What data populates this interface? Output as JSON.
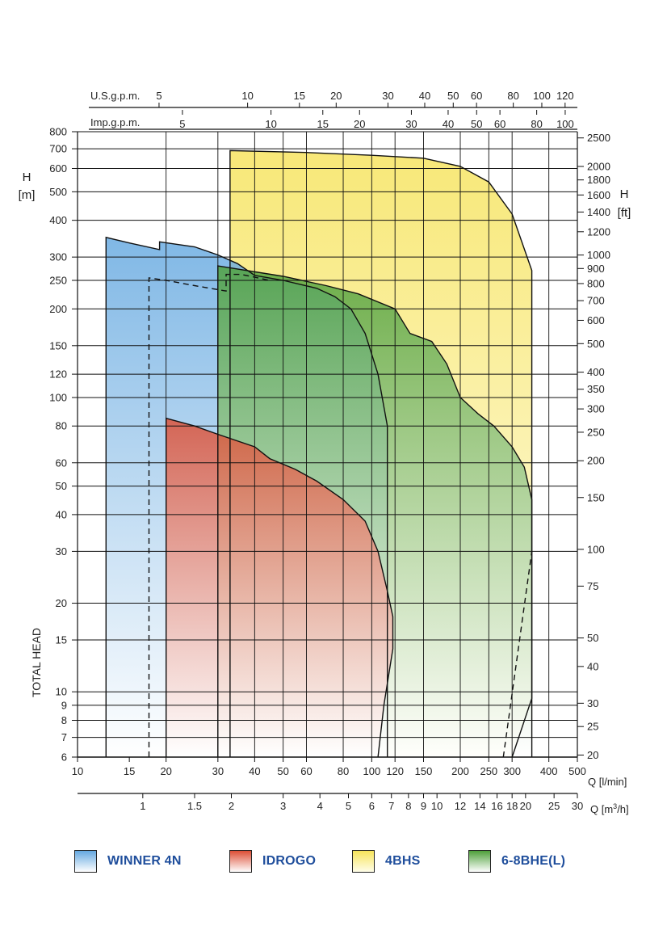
{
  "chart_data": {
    "type": "area",
    "title": "",
    "y_scale": "log",
    "x_scale": "log",
    "ylim": [
      6,
      800
    ],
    "xlim": [
      10,
      500
    ],
    "ylabel": "TOTAL HEAD",
    "left_axis": {
      "label_line1": "H",
      "label_line2": "[m]",
      "ticks": [
        800,
        700,
        600,
        500,
        400,
        300,
        250,
        200,
        150,
        120,
        100,
        80,
        60,
        50,
        40,
        30,
        20,
        15,
        10,
        9,
        8,
        7,
        6
      ]
    },
    "right_axis": {
      "label_line1": "H",
      "label_line2": "[ft]",
      "ticks": [
        2500,
        2000,
        1800,
        1600,
        1400,
        1200,
        1000,
        900,
        800,
        700,
        600,
        500,
        400,
        350,
        300,
        250,
        200,
        150,
        100,
        75,
        50,
        40,
        30,
        25,
        20
      ]
    },
    "bottom_axis_lmin": {
      "label": "Q [l/min]",
      "ticks": [
        10,
        15,
        20,
        30,
        40,
        50,
        60,
        80,
        100,
        120,
        150,
        200,
        250,
        300,
        400,
        500
      ]
    },
    "bottom_axis_m3h": {
      "label": "Q [m",
      "label_sup": "3",
      "label_end": "/h]",
      "ticks": [
        1,
        1.5,
        2,
        3,
        4,
        5,
        6,
        7,
        8,
        9,
        10,
        12,
        14,
        16,
        18,
        20,
        25,
        30
      ]
    },
    "top_axis_usgpm": {
      "label": "U.S.g.p.m.",
      "ticks": [
        5,
        10,
        15,
        20,
        30,
        40,
        50,
        60,
        80,
        100,
        120
      ]
    },
    "top_axis_impgpm": {
      "label": "Imp.g.p.m.",
      "ticks": [
        5,
        10,
        15,
        20,
        30,
        40,
        50,
        60,
        80,
        100
      ]
    },
    "grid_x": [
      20,
      30,
      40,
      50,
      60,
      80,
      100,
      120,
      150,
      200,
      250,
      300,
      400
    ],
    "series": [
      {
        "name": "4BHS",
        "color_top": "#f6e35a",
        "color_bottom": "#fffde8",
        "outline": [
          [
            33,
            6
          ],
          [
            33,
            690
          ],
          [
            60,
            680
          ],
          [
            100,
            665
          ],
          [
            150,
            650
          ],
          [
            200,
            610
          ],
          [
            250,
            540
          ],
          [
            300,
            420
          ],
          [
            350,
            270
          ],
          [
            350,
            9.5
          ],
          [
            300,
            6
          ]
        ]
      },
      {
        "name": "WINNER 4N",
        "color_top": "#64a8e0",
        "color_bottom": "#ffffff",
        "outline": [
          [
            12.5,
            6
          ],
          [
            12.5,
            350
          ],
          [
            15,
            335
          ],
          [
            19,
            318
          ],
          [
            19,
            338
          ],
          [
            25,
            325
          ],
          [
            30,
            305
          ],
          [
            35,
            285
          ],
          [
            40,
            260
          ],
          [
            50,
            250
          ],
          [
            65,
            235
          ],
          [
            75,
            220
          ],
          [
            85,
            200
          ],
          [
            95,
            165
          ],
          [
            105,
            120
          ],
          [
            113,
            80
          ],
          [
            113,
            6
          ]
        ]
      },
      {
        "name": "6-8BHE(L)",
        "color_top": "#4ea03a",
        "color_bottom": "#ffffff",
        "outline": [
          [
            30,
            6
          ],
          [
            30,
            280
          ],
          [
            50,
            258
          ],
          [
            70,
            240
          ],
          [
            90,
            225
          ],
          [
            120,
            200
          ],
          [
            135,
            165
          ],
          [
            160,
            155
          ],
          [
            180,
            130
          ],
          [
            200,
            100
          ],
          [
            230,
            88
          ],
          [
            260,
            80
          ],
          [
            300,
            68
          ],
          [
            330,
            58
          ],
          [
            350,
            45
          ],
          [
            350,
            6
          ]
        ]
      },
      {
        "name": "IDROGO",
        "color_top": "#dc4e34",
        "color_bottom": "#ffffff",
        "outline": [
          [
            20,
            6
          ],
          [
            20,
            85
          ],
          [
            25,
            80
          ],
          [
            30,
            75
          ],
          [
            40,
            68
          ],
          [
            45,
            62
          ],
          [
            55,
            57
          ],
          [
            65,
            52
          ],
          [
            80,
            45
          ],
          [
            95,
            38
          ],
          [
            105,
            30
          ],
          [
            113,
            22
          ],
          [
            118,
            18
          ],
          [
            118,
            14
          ],
          [
            110,
            9
          ],
          [
            105,
            6
          ]
        ]
      }
    ],
    "dashed_outlines": [
      {
        "name": "6-8BHE(L)-alt",
        "points": [
          [
            17.5,
            6
          ],
          [
            17.5,
            255
          ],
          [
            20,
            250
          ],
          [
            25,
            240
          ],
          [
            32,
            230
          ],
          [
            32,
            262
          ],
          [
            36,
            262
          ],
          [
            45,
            250
          ]
        ]
      },
      {
        "name": "4BHS-alt",
        "points": [
          [
            280,
            6
          ],
          [
            350,
            30
          ]
        ]
      }
    ]
  },
  "legend": [
    {
      "label": "WINNER 4N",
      "color_top": "#64a8e0",
      "color_bottom": "#ffffff"
    },
    {
      "label": "IDROGO",
      "color_top": "#dc4e34",
      "color_bottom": "#ffffff"
    },
    {
      "label": "4BHS",
      "color_top": "#f6e35a",
      "color_bottom": "#fffde8"
    },
    {
      "label": "6-8BHE(L)",
      "color_top": "#4ea03a",
      "color_bottom": "#ffffff"
    }
  ]
}
